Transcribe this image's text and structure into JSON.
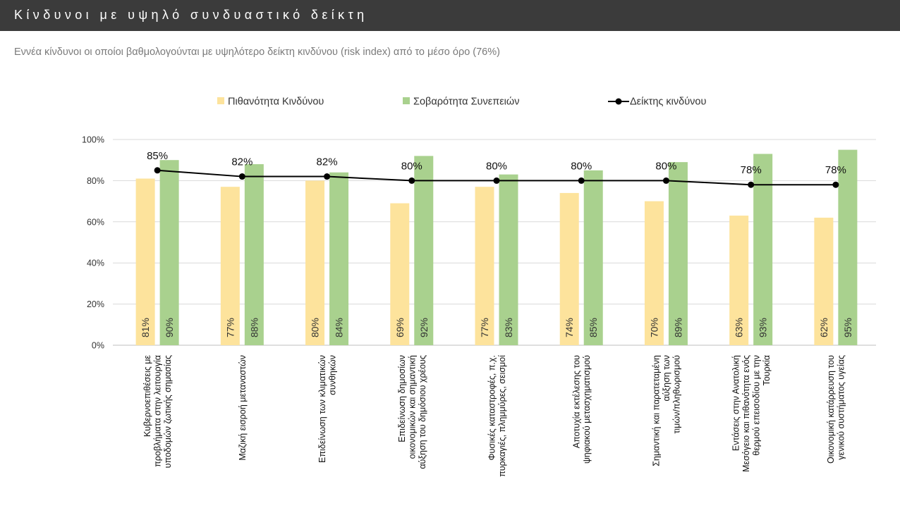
{
  "header": {
    "title": "Κίνδυνοι με υψηλό συνδυαστικό δείκτη"
  },
  "subtitle": "Εννέα κίνδυνοι οι οποίοι βαθμολογούνται με υψηλότερο δείκτη κινδύνου (risk index) από το μέσο όρο (76%)",
  "colors": {
    "header_bg": "#3b3b3b",
    "probability": "#fde39c",
    "severity": "#a9d18e",
    "risk_index": "#000000",
    "grid": "#d9d9d9"
  },
  "chart_data": {
    "type": "bar",
    "ylim": [
      0,
      100
    ],
    "yticks": [
      "0%",
      "20%",
      "40%",
      "60%",
      "80%",
      "100%"
    ],
    "ytick_values": [
      0,
      20,
      40,
      60,
      80,
      100
    ],
    "grid": true,
    "legend_position": "top",
    "categories": [
      [
        "Κυβερνοεπιθέσεις με",
        "προβλήματα στην λειτουργία",
        "υποδομών ζωτικής σημασίας"
      ],
      [
        "Μαζική εισροή μεταναστών"
      ],
      [
        "Επιδείνωση των κλιματικών",
        "συνθηκών"
      ],
      [
        "Επιδείνωση δημοσίων",
        "οικονομικών και σημαντική",
        "αύξηση του δημόσιου χρέους"
      ],
      [
        "Φυσικές καταστροφές, π.χ.",
        "πυρκαγιές, πλημμύρες, σεισμοί"
      ],
      [
        "Αποτυχία εκτέλεσης του",
        "ψηφιακού μετασχηματισμού"
      ],
      [
        "Σημαντική και παρατεταμένη",
        "αύξηση των",
        "τιμών/πληθωρισμού"
      ],
      [
        "Εντάσεις στην Ανατολική",
        "Μεσόγειο και πιθανότητα ενός",
        "θερμού επεισοδίου με την",
        "Τουρκία"
      ],
      [
        "Οικονομική κατάρρευση του",
        "γενικού συστήματος υγείας"
      ]
    ],
    "series": [
      {
        "name": "Πιθανότητα Κινδύνου",
        "type": "bar",
        "values": [
          81,
          77,
          80,
          69,
          77,
          74,
          70,
          63,
          62
        ],
        "labels": [
          "81%",
          "77%",
          "80%",
          "69%",
          "77%",
          "74%",
          "70%",
          "63%",
          "62%"
        ]
      },
      {
        "name": "Σοβαρότητα Συνεπειών",
        "type": "bar",
        "values": [
          90,
          88,
          84,
          92,
          83,
          85,
          89,
          93,
          95
        ],
        "labels": [
          "90%",
          "88%",
          "84%",
          "92%",
          "83%",
          "85%",
          "89%",
          "93%",
          "95%"
        ]
      },
      {
        "name": "Δείκτης κινδύνου",
        "type": "line",
        "values": [
          85,
          82,
          82,
          80,
          80,
          80,
          80,
          78,
          78
        ],
        "labels": [
          "85%",
          "82%",
          "82%",
          "80%",
          "80%",
          "80%",
          "80%",
          "78%",
          "78%"
        ]
      }
    ]
  }
}
